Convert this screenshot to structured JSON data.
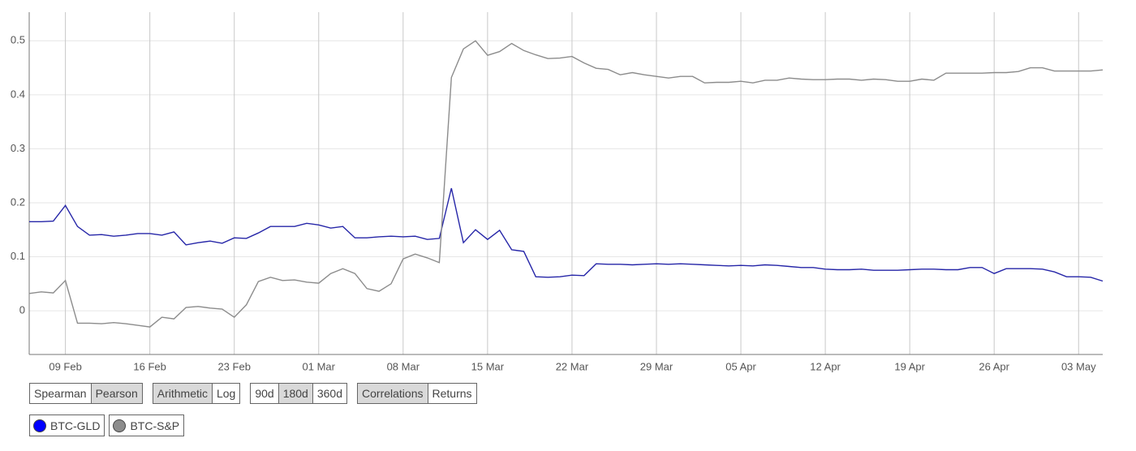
{
  "chart_data": {
    "type": "line",
    "categories": [
      null,
      null,
      null,
      "09 Feb",
      null,
      null,
      null,
      null,
      null,
      null,
      "16 Feb",
      null,
      null,
      null,
      null,
      null,
      null,
      "23 Feb",
      null,
      null,
      null,
      null,
      null,
      null,
      "01 Mar",
      null,
      null,
      null,
      null,
      null,
      null,
      "08 Mar",
      null,
      null,
      null,
      null,
      null,
      null,
      "15 Mar",
      null,
      null,
      null,
      null,
      null,
      null,
      "22 Mar",
      null,
      null,
      null,
      null,
      null,
      null,
      "29 Mar",
      null,
      null,
      null,
      null,
      null,
      null,
      "05 Apr",
      null,
      null,
      null,
      null,
      null,
      null,
      "12 Apr",
      null,
      null,
      null,
      null,
      null,
      null,
      "19 Apr",
      null,
      null,
      null,
      null,
      null,
      null,
      "26 Apr",
      null,
      null,
      null,
      null,
      null,
      null,
      "03 May",
      null,
      null
    ],
    "series": [
      {
        "name": "BTC-GLD",
        "color": "#2626a8",
        "values": [
          0.165,
          0.165,
          0.166,
          0.195,
          0.156,
          0.14,
          0.141,
          0.138,
          0.14,
          0.143,
          0.143,
          0.14,
          0.146,
          0.122,
          0.126,
          0.129,
          0.125,
          0.135,
          0.134,
          0.144,
          0.156,
          0.156,
          0.156,
          0.162,
          0.159,
          0.153,
          0.156,
          0.135,
          0.135,
          0.137,
          0.138,
          0.137,
          0.138,
          0.132,
          0.134,
          0.227,
          0.126,
          0.15,
          0.132,
          0.149,
          0.113,
          0.11,
          0.063,
          0.062,
          0.063,
          0.066,
          0.065,
          0.087,
          0.086,
          0.086,
          0.085,
          0.086,
          0.087,
          0.086,
          0.087,
          0.086,
          0.085,
          0.084,
          0.083,
          0.084,
          0.083,
          0.085,
          0.084,
          0.082,
          0.08,
          0.08,
          0.077,
          0.076,
          0.076,
          0.077,
          0.075,
          0.075,
          0.075,
          0.076,
          0.077,
          0.077,
          0.076,
          0.076,
          0.08,
          0.08,
          0.069,
          0.078,
          0.078,
          0.078,
          0.077,
          0.072,
          0.063,
          0.063,
          0.062,
          0.055
        ]
      },
      {
        "name": "BTC-S&P",
        "color": "#8c8c8c",
        "values": [
          0.032,
          0.035,
          0.033,
          0.056,
          -0.023,
          -0.023,
          -0.024,
          -0.022,
          -0.024,
          -0.027,
          -0.03,
          -0.012,
          -0.015,
          0.006,
          0.008,
          0.005,
          0.003,
          -0.012,
          0.011,
          0.054,
          0.062,
          0.056,
          0.057,
          0.053,
          0.051,
          0.069,
          0.078,
          0.069,
          0.041,
          0.036,
          0.05,
          0.096,
          0.105,
          0.098,
          0.089,
          0.432,
          0.485,
          0.5,
          0.473,
          0.48,
          0.495,
          0.482,
          0.474,
          0.467,
          0.468,
          0.471,
          0.459,
          0.449,
          0.447,
          0.437,
          0.441,
          0.437,
          0.434,
          0.431,
          0.434,
          0.434,
          0.422,
          0.423,
          0.423,
          0.425,
          0.422,
          0.427,
          0.427,
          0.431,
          0.429,
          0.428,
          0.428,
          0.429,
          0.429,
          0.427,
          0.429,
          0.428,
          0.425,
          0.425,
          0.429,
          0.427,
          0.44,
          0.44,
          0.44,
          0.44,
          0.441,
          0.441,
          0.443,
          0.45,
          0.45,
          0.444,
          0.444,
          0.444,
          0.444,
          0.446
        ]
      }
    ],
    "ylim": [
      -0.081,
      0.553
    ],
    "yticks": [
      0,
      0.1,
      0.2,
      0.3,
      0.4,
      0.5
    ],
    "grid": true
  },
  "controls": [
    {
      "options": [
        "Spearman",
        "Pearson"
      ],
      "selected": 1
    },
    {
      "options": [
        "Arithmetic",
        "Log"
      ],
      "selected": 0
    },
    {
      "options": [
        "90d",
        "180d",
        "360d"
      ],
      "selected": 1
    },
    {
      "options": [
        "Correlations",
        "Returns"
      ],
      "selected": 0
    }
  ]
}
